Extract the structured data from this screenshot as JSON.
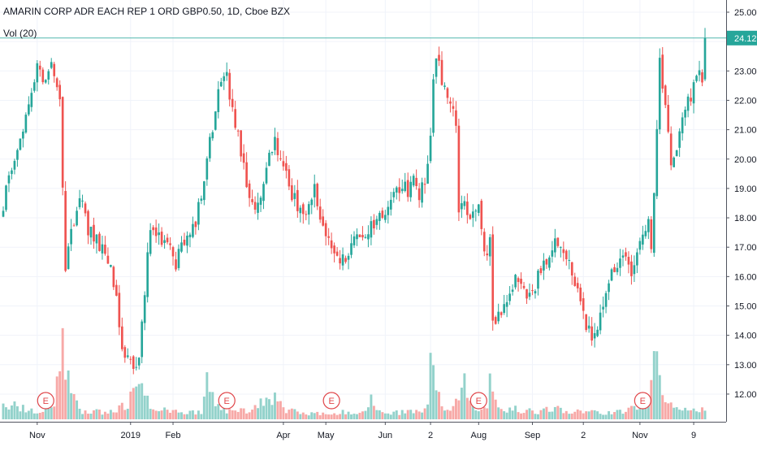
{
  "header": {
    "symbol_title": "AMARIN CORP ADR EACH REP 1 ORD GBP0.50, 1D, Cboe BZX",
    "volume_indicator": "Vol (20)"
  },
  "price_scale": {
    "ticks": [
      "25.00",
      "24.00",
      "23.00",
      "22.00",
      "21.00",
      "20.00",
      "19.00",
      "18.00",
      "17.00",
      "16.00",
      "15.00",
      "14.00",
      "13.00",
      "12.00"
    ],
    "last_price_label": "24.12"
  },
  "time_scale": {
    "labels": [
      {
        "key": "nov",
        "text": "Nov",
        "idx": 12
      },
      {
        "key": "2019",
        "text": "2019",
        "idx": 45
      },
      {
        "key": "feb",
        "text": "Feb",
        "idx": 60
      },
      {
        "key": "apr",
        "text": "Apr",
        "idx": 99
      },
      {
        "key": "may",
        "text": "May",
        "idx": 114
      },
      {
        "key": "jun",
        "text": "Jun",
        "idx": 135
      },
      {
        "key": "2-jul",
        "text": "2",
        "idx": 151
      },
      {
        "key": "aug",
        "text": "Aug",
        "idx": 168
      },
      {
        "key": "sep",
        "text": "Sep",
        "idx": 187
      },
      {
        "key": "2-oct",
        "text": "2",
        "idx": 205
      },
      {
        "key": "nov-2",
        "text": "Nov",
        "idx": 225
      },
      {
        "key": "9-dec",
        "text": "9",
        "idx": 244
      }
    ]
  },
  "earnings_markers": [
    {
      "label": "E",
      "idx": 15
    },
    {
      "label": "E",
      "idx": 79
    },
    {
      "label": "E",
      "idx": 116
    },
    {
      "label": "E",
      "idx": 168
    },
    {
      "label": "E",
      "idx": 226
    }
  ],
  "colors": {
    "up": "#26a69a",
    "down": "#ef5350",
    "vol_up": "#93d2cb",
    "vol_down": "#f7a9a7",
    "grid": "#f0f3fa",
    "last_price_bg": "#26a69a",
    "axis_text": "#131722",
    "marker": "#e0464a"
  },
  "chart_data": {
    "type": "candlestick",
    "title": "AMARIN CORP ADR EACH REP 1 ORD GBP0.50, 1D, Cboe BZX",
    "ylim": [
      11.3,
      25.3
    ],
    "anchors": [
      [
        0,
        18.5
      ],
      [
        5,
        20.2
      ],
      [
        10,
        22.2
      ],
      [
        12,
        23
      ],
      [
        15,
        22.8
      ],
      [
        17,
        23.2
      ],
      [
        20,
        22.0
      ],
      [
        22,
        16.2
      ],
      [
        24,
        17.6
      ],
      [
        27,
        18.7
      ],
      [
        30,
        17.6
      ],
      [
        33,
        17.2
      ],
      [
        37,
        16.6
      ],
      [
        40,
        15.2
      ],
      [
        42,
        13.7
      ],
      [
        44,
        13.2
      ],
      [
        46,
        12.8
      ],
      [
        48,
        13.0
      ],
      [
        50,
        15.5
      ],
      [
        52,
        17.7
      ],
      [
        55,
        17.4
      ],
      [
        58,
        17.0
      ],
      [
        61,
        16.4
      ],
      [
        64,
        17.3
      ],
      [
        67,
        17.6
      ],
      [
        70,
        18.6
      ],
      [
        72,
        20.0
      ],
      [
        75,
        21.5
      ],
      [
        77,
        22.8
      ],
      [
        79,
        22.7
      ],
      [
        82,
        21.3
      ],
      [
        84,
        20.2
      ],
      [
        86,
        19.3
      ],
      [
        88,
        18.3
      ],
      [
        90,
        18.5
      ],
      [
        92,
        19.3
      ],
      [
        94,
        20.0
      ],
      [
        96,
        20.5
      ],
      [
        98,
        20.1
      ],
      [
        100,
        19.4
      ],
      [
        103,
        18.6
      ],
      [
        106,
        18.0
      ],
      [
        108,
        18.5
      ],
      [
        110,
        19.0
      ],
      [
        112,
        18.0
      ],
      [
        114,
        17.3
      ],
      [
        116,
        17.0
      ],
      [
        118,
        16.8
      ],
      [
        121,
        16.4
      ],
      [
        124,
        17.2
      ],
      [
        127,
        17.5
      ],
      [
        130,
        17.7
      ],
      [
        133,
        18.0
      ],
      [
        136,
        18.3
      ],
      [
        138,
        18.7
      ],
      [
        141,
        19.1
      ],
      [
        143,
        18.9
      ],
      [
        145,
        19.3
      ],
      [
        147,
        18.7
      ],
      [
        149,
        19.2
      ],
      [
        151,
        20.6
      ],
      [
        152,
        22.8
      ],
      [
        153,
        23.5
      ],
      [
        156,
        22.4
      ],
      [
        159,
        21.6
      ],
      [
        160,
        21.0
      ],
      [
        161,
        18.4
      ],
      [
        165,
        18.2
      ],
      [
        168,
        18.4
      ],
      [
        170,
        17.1
      ],
      [
        171,
        16.8
      ],
      [
        172,
        17.6
      ],
      [
        173,
        14.3
      ],
      [
        176,
        14.9
      ],
      [
        179,
        15.4
      ],
      [
        181,
        16.2
      ],
      [
        184,
        15.5
      ],
      [
        187,
        15.4
      ],
      [
        190,
        16.3
      ],
      [
        193,
        16.5
      ],
      [
        196,
        17.3
      ],
      [
        198,
        16.9
      ],
      [
        200,
        16.5
      ],
      [
        202,
        15.9
      ],
      [
        204,
        15.0
      ],
      [
        206,
        14.2
      ],
      [
        209,
        14.0
      ],
      [
        211,
        14.7
      ],
      [
        213,
        15.2
      ],
      [
        215,
        16.0
      ],
      [
        218,
        16.5
      ],
      [
        220,
        16.7
      ],
      [
        222,
        16.2
      ],
      [
        224,
        17.0
      ],
      [
        226,
        17.4
      ],
      [
        228,
        17.9
      ],
      [
        229,
        16.9
      ],
      [
        230,
        18.6
      ],
      [
        231,
        21.2
      ],
      [
        232,
        23.2
      ],
      [
        233,
        22.5
      ],
      [
        234,
        22.0
      ],
      [
        235,
        21.2
      ],
      [
        236,
        19.9
      ],
      [
        238,
        20.5
      ],
      [
        240,
        21.2
      ],
      [
        242,
        21.9
      ],
      [
        244,
        22.5
      ],
      [
        246,
        23.2
      ],
      [
        247,
        22.8
      ],
      [
        248,
        24.12
      ]
    ],
    "volume_anchors": [
      [
        0,
        0.55
      ],
      [
        3,
        0.7
      ],
      [
        6,
        0.5
      ],
      [
        9,
        0.45
      ],
      [
        11,
        0.35
      ],
      [
        13,
        0.4
      ],
      [
        15,
        0.5
      ],
      [
        18,
        0.55
      ],
      [
        19,
        1.4
      ],
      [
        20,
        2.6
      ],
      [
        21,
        3.0
      ],
      [
        22,
        2.3
      ],
      [
        24,
        1.0
      ],
      [
        27,
        0.4
      ],
      [
        30,
        0.35
      ],
      [
        35,
        0.3
      ],
      [
        40,
        0.45
      ],
      [
        43,
        0.6
      ],
      [
        45,
        0.9
      ],
      [
        47,
        1.1
      ],
      [
        49,
        1.2
      ],
      [
        51,
        0.9
      ],
      [
        54,
        0.45
      ],
      [
        58,
        0.35
      ],
      [
        62,
        0.3
      ],
      [
        66,
        0.3
      ],
      [
        70,
        0.3
      ],
      [
        72,
        1.5
      ],
      [
        73,
        1.6
      ],
      [
        75,
        0.8
      ],
      [
        78,
        0.4
      ],
      [
        82,
        0.35
      ],
      [
        88,
        0.35
      ],
      [
        90,
        0.6
      ],
      [
        93,
        0.8
      ],
      [
        95,
        1.0
      ],
      [
        96,
        1.5
      ],
      [
        97,
        0.7
      ],
      [
        100,
        0.4
      ],
      [
        105,
        0.3
      ],
      [
        110,
        0.25
      ],
      [
        115,
        0.25
      ],
      [
        120,
        0.3
      ],
      [
        125,
        0.3
      ],
      [
        128,
        0.35
      ],
      [
        130,
        1.1
      ],
      [
        131,
        0.6
      ],
      [
        133,
        0.35
      ],
      [
        140,
        0.3
      ],
      [
        148,
        0.35
      ],
      [
        150,
        0.6
      ],
      [
        151,
        2.4
      ],
      [
        152,
        1.8
      ],
      [
        153,
        1.4
      ],
      [
        154,
        0.9
      ],
      [
        156,
        0.6
      ],
      [
        158,
        0.5
      ],
      [
        160,
        0.8
      ],
      [
        162,
        1.2
      ],
      [
        163,
        1.5
      ],
      [
        164,
        0.7
      ],
      [
        166,
        0.5
      ],
      [
        168,
        0.4
      ],
      [
        170,
        0.5
      ],
      [
        171,
        0.6
      ],
      [
        172,
        1.5
      ],
      [
        173,
        1.0
      ],
      [
        175,
        0.5
      ],
      [
        180,
        0.45
      ],
      [
        185,
        0.4
      ],
      [
        190,
        0.35
      ],
      [
        195,
        0.45
      ],
      [
        200,
        0.4
      ],
      [
        205,
        0.35
      ],
      [
        210,
        0.3
      ],
      [
        215,
        0.3
      ],
      [
        220,
        0.35
      ],
      [
        224,
        0.5
      ],
      [
        226,
        0.6
      ],
      [
        228,
        0.8
      ],
      [
        229,
        1.3
      ],
      [
        230,
        2.2
      ],
      [
        231,
        2.3
      ],
      [
        232,
        1.9
      ],
      [
        233,
        1.4
      ],
      [
        234,
        1.2
      ],
      [
        236,
        0.6
      ],
      [
        238,
        0.4
      ],
      [
        242,
        0.4
      ],
      [
        245,
        0.4
      ],
      [
        248,
        0.45
      ]
    ]
  }
}
